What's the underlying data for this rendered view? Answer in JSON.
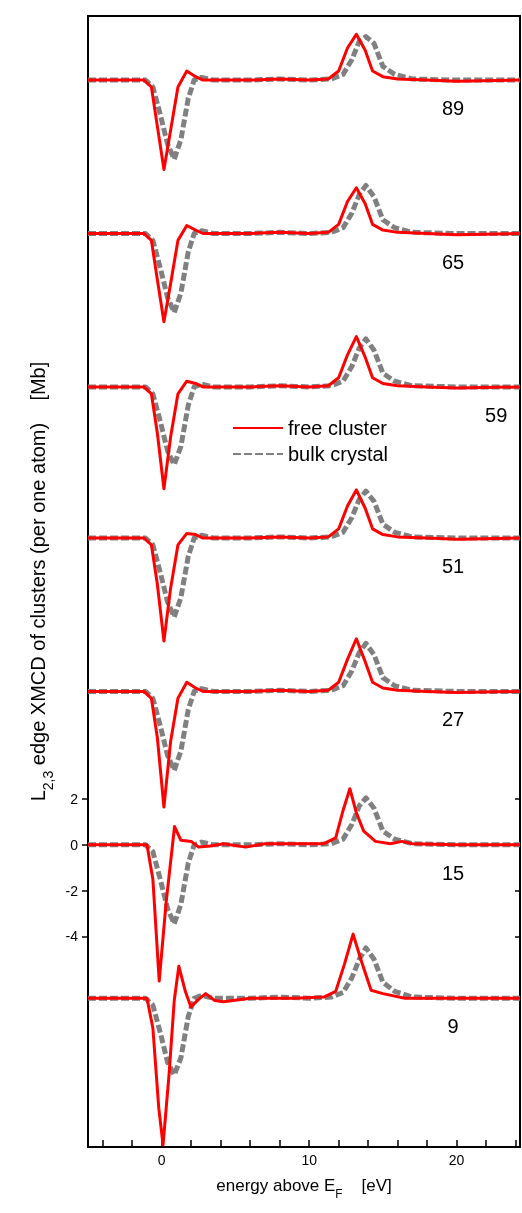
{
  "chart_data": {
    "type": "line",
    "xlabel": "energy above E$_{F}$    [eV]",
    "ylabel": "L$_{2,3}$ edge XMCD of clusters (per one atom)    [Mb]",
    "xlim": [
      -5,
      24.3
    ],
    "ylim": [
      -13.2,
      36.2
    ],
    "xticks": [
      {
        "value": -4,
        "label": null
      },
      {
        "value": -2,
        "label": null
      },
      0,
      {
        "value": 2,
        "label": null
      },
      {
        "value": 4,
        "label": null
      },
      {
        "value": 6,
        "label": null
      },
      {
        "value": 8,
        "label": null
      },
      10,
      {
        "value": 12,
        "label": null
      },
      {
        "value": 14,
        "label": null
      },
      {
        "value": 16,
        "label": null
      },
      {
        "value": 18,
        "label": null
      },
      20,
      {
        "value": 22,
        "label": null
      },
      {
        "value": 24,
        "label": null
      }
    ],
    "yticks": [
      -4,
      -2,
      0,
      2
    ],
    "grid": false,
    "legend": "center",
    "marker": "none",
    "series": [
      {
        "name": "free cluster",
        "color": "#ff0000",
        "line_style": "solid",
        "x": [
          -5,
          -1.2,
          -0.7,
          -0.3,
          0.15,
          0.6,
          1.1,
          1.7,
          2.3,
          2.8,
          4,
          6,
          8,
          10,
          11.3,
          12,
          12.6,
          13.2,
          13.8,
          14.3,
          15,
          16,
          18,
          20,
          24.3
        ],
        "values": [
          33.4,
          33.4,
          33.1,
          31.4,
          29.5,
          31.2,
          33.1,
          33.8,
          33.55,
          33.4,
          33.4,
          33.4,
          33.45,
          33.4,
          33.45,
          33.8,
          34.8,
          35.4,
          34.7,
          33.8,
          33.55,
          33.45,
          33.4,
          33.35,
          33.4
        ]
      },
      {
        "name": "bulk crystal",
        "color": "#808080",
        "line_style": "dashed",
        "x": [
          -5,
          -1.1,
          -0.6,
          -0.1,
          0.4,
          0.85,
          1.3,
          1.8,
          2.2,
          2.7,
          3.5,
          6,
          8,
          10,
          11.5,
          12.3,
          12.9,
          13.4,
          13.85,
          14.4,
          15,
          15.8,
          17,
          20,
          24.3
        ],
        "values": [
          33.4,
          33.4,
          33.1,
          31.9,
          30.6,
          29.95,
          30.8,
          32.6,
          33.4,
          33.52,
          33.4,
          33.4,
          33.45,
          33.4,
          33.45,
          33.65,
          34.3,
          35.1,
          35.3,
          35.0,
          34.0,
          33.65,
          33.45,
          33.4,
          33.4
        ]
      },
      {
        "color": "#ff0000",
        "line_style": "solid",
        "x": [
          -5,
          -1.2,
          -0.7,
          -0.3,
          0.15,
          0.6,
          1.1,
          1.7,
          2.3,
          2.8,
          4,
          6,
          8,
          10,
          11.3,
          12,
          12.6,
          13.2,
          13.8,
          14.3,
          15,
          16,
          18,
          20,
          24.3
        ],
        "values": [
          26.7,
          26.7,
          26.4,
          24.7,
          22.85,
          24.5,
          26.4,
          27.05,
          26.85,
          26.7,
          26.7,
          26.7,
          26.75,
          26.7,
          26.75,
          27.1,
          28.1,
          28.7,
          28.0,
          27.1,
          26.85,
          26.75,
          26.7,
          26.65,
          26.7
        ]
      },
      {
        "color": "#808080",
        "line_style": "dashed",
        "x": [
          -5,
          -1.1,
          -0.6,
          -0.1,
          0.4,
          0.85,
          1.3,
          1.8,
          2.2,
          2.7,
          3.5,
          6,
          8,
          10,
          11.5,
          12.3,
          12.9,
          13.4,
          13.85,
          14.4,
          15,
          15.8,
          17,
          20,
          24.3
        ],
        "values": [
          26.7,
          26.7,
          26.4,
          25.2,
          23.9,
          23.25,
          24.1,
          25.9,
          26.7,
          26.82,
          26.7,
          26.7,
          26.75,
          26.7,
          26.75,
          26.95,
          27.6,
          28.4,
          28.8,
          28.3,
          27.3,
          26.95,
          26.75,
          26.7,
          26.7
        ]
      },
      {
        "color": "#ff0000",
        "line_style": "solid",
        "x": [
          -5,
          -1.2,
          -0.7,
          -0.3,
          0.15,
          0.6,
          1.1,
          1.7,
          2.3,
          2.8,
          4,
          6,
          8,
          10,
          11.3,
          12,
          12.6,
          13.2,
          13.8,
          14.3,
          15,
          16,
          18,
          20,
          24.3
        ],
        "values": [
          20.0,
          20.0,
          19.7,
          18.0,
          15.55,
          17.8,
          19.7,
          20.25,
          20.15,
          20.0,
          20.0,
          20.0,
          20.05,
          20.0,
          20.05,
          20.4,
          21.4,
          22.2,
          21.3,
          20.4,
          20.15,
          20.05,
          20.0,
          19.95,
          20.0
        ]
      },
      {
        "color": "#808080",
        "line_style": "dashed",
        "x": [
          -5,
          -1.1,
          -0.6,
          -0.1,
          0.4,
          0.85,
          1.3,
          1.8,
          2.2,
          2.7,
          3.5,
          6,
          8,
          10,
          11.5,
          12.3,
          12.9,
          13.4,
          13.85,
          14.4,
          15,
          15.8,
          17,
          20,
          24.3
        ],
        "values": [
          20.0,
          20.0,
          19.7,
          18.5,
          17.2,
          16.6,
          17.4,
          19.2,
          20.0,
          20.12,
          20.0,
          20.0,
          20.05,
          20.0,
          20.05,
          20.25,
          20.9,
          21.7,
          22.1,
          21.6,
          20.6,
          20.25,
          20.05,
          20.0,
          20.0
        ]
      },
      {
        "color": "#ff0000",
        "line_style": "solid",
        "x": [
          -5,
          -1.2,
          -0.7,
          -0.3,
          0.15,
          0.6,
          1.1,
          1.7,
          2.3,
          2.8,
          4,
          6,
          8,
          10,
          11.3,
          12,
          12.6,
          13.2,
          13.8,
          14.3,
          15,
          16,
          18,
          20,
          24.3
        ],
        "values": [
          13.4,
          13.4,
          13.1,
          11.4,
          8.9,
          11.2,
          13.1,
          13.6,
          13.55,
          13.4,
          13.4,
          13.4,
          13.45,
          13.4,
          13.45,
          13.8,
          14.8,
          15.5,
          14.7,
          13.8,
          13.55,
          13.45,
          13.4,
          13.35,
          13.4
        ]
      },
      {
        "color": "#808080",
        "line_style": "dashed",
        "x": [
          -5,
          -1.1,
          -0.6,
          -0.1,
          0.4,
          0.85,
          1.3,
          1.8,
          2.2,
          2.7,
          3.5,
          6,
          8,
          10,
          11.5,
          12.3,
          12.9,
          13.4,
          13.85,
          14.4,
          15,
          15.8,
          17,
          20,
          24.3
        ],
        "values": [
          13.4,
          13.4,
          13.1,
          11.9,
          10.6,
          9.95,
          10.8,
          12.6,
          13.4,
          13.52,
          13.4,
          13.4,
          13.45,
          13.4,
          13.45,
          13.65,
          14.3,
          15.1,
          15.45,
          15.0,
          14.0,
          13.65,
          13.45,
          13.4,
          13.4
        ]
      },
      {
        "color": "#ff0000",
        "line_style": "solid",
        "x": [
          -5,
          -1.2,
          -0.7,
          -0.3,
          0.15,
          0.6,
          1.1,
          1.7,
          2.3,
          2.8,
          4,
          6,
          8,
          10,
          11.3,
          12,
          12.6,
          13.2,
          13.8,
          14.3,
          15,
          16,
          18,
          20,
          24.3
        ],
        "values": [
          6.7,
          6.7,
          6.4,
          4.7,
          1.65,
          4.5,
          6.4,
          7.1,
          6.85,
          6.7,
          6.7,
          6.7,
          6.75,
          6.7,
          6.75,
          7.1,
          8.1,
          9.0,
          8.0,
          7.1,
          6.85,
          6.75,
          6.7,
          6.65,
          6.7
        ]
      },
      {
        "color": "#808080",
        "line_style": "dashed",
        "x": [
          -5,
          -1.1,
          -0.6,
          -0.1,
          0.4,
          0.85,
          1.3,
          1.8,
          2.2,
          2.7,
          3.5,
          6,
          8,
          10,
          11.5,
          12.3,
          12.9,
          13.4,
          13.85,
          14.4,
          15,
          15.8,
          17,
          20,
          24.3
        ],
        "values": [
          6.7,
          6.7,
          6.4,
          5.2,
          3.9,
          3.25,
          4.1,
          5.9,
          6.7,
          6.82,
          6.7,
          6.7,
          6.75,
          6.7,
          6.75,
          6.95,
          7.6,
          8.4,
          8.8,
          8.3,
          7.3,
          6.95,
          6.75,
          6.7,
          6.7
        ]
      },
      {
        "color": "#ff0000",
        "line_style": "solid",
        "x": [
          -5,
          -1.0,
          -0.6,
          -0.17,
          0.3,
          0.87,
          1.3,
          2.0,
          2.5,
          3.3,
          4.2,
          5.7,
          7,
          9,
          11,
          11.8,
          12.3,
          12.76,
          13.2,
          13.7,
          14.5,
          15.5,
          16.3,
          17,
          20,
          24.3
        ],
        "values": [
          0,
          0,
          -1.5,
          -5.95,
          -2.5,
          0.8,
          0.2,
          0.15,
          -0.1,
          -0.05,
          0.05,
          -0.1,
          0.05,
          0.05,
          0.05,
          0.3,
          1.5,
          2.45,
          1.4,
          0.6,
          0.15,
          0.05,
          0.15,
          0.05,
          0,
          0
        ]
      },
      {
        "color": "#808080",
        "line_style": "dashed",
        "x": [
          -5,
          -1.1,
          -0.6,
          -0.1,
          0.4,
          0.85,
          1.3,
          1.8,
          2.2,
          2.7,
          3.5,
          6,
          8,
          10,
          11.5,
          12.3,
          12.9,
          13.4,
          13.85,
          14.4,
          15,
          15.8,
          17,
          20,
          24.3
        ],
        "values": [
          0,
          0,
          -0.3,
          -1.5,
          -2.8,
          -3.45,
          -2.6,
          -0.8,
          0,
          0.12,
          0,
          0,
          0.05,
          0,
          0.05,
          0.25,
          0.9,
          1.7,
          2.05,
          1.6,
          0.6,
          0.25,
          0.05,
          0,
          0
        ]
      },
      {
        "color": "#ff0000",
        "line_style": "solid",
        "x": [
          -5,
          -1.0,
          -0.6,
          -0.2,
          0.09,
          0.5,
          0.85,
          1.16,
          1.6,
          1.98,
          2.5,
          2.98,
          3.6,
          4.2,
          6,
          9,
          11,
          11.8,
          12.4,
          12.98,
          13.5,
          14.2,
          15,
          16.5,
          20,
          24.3
        ],
        "values": [
          -6.7,
          -6.7,
          -8.0,
          -11.5,
          -13.1,
          -10.0,
          -6.8,
          -5.3,
          -6.4,
          -7.08,
          -6.75,
          -6.5,
          -6.8,
          -6.85,
          -6.7,
          -6.7,
          -6.65,
          -6.4,
          -5.2,
          -3.9,
          -5.0,
          -6.35,
          -6.5,
          -6.7,
          -6.7,
          -6.7
        ]
      },
      {
        "color": "#808080",
        "line_style": "dashed",
        "x": [
          -5,
          -1.1,
          -0.6,
          -0.1,
          0.4,
          0.85,
          1.3,
          1.8,
          2.2,
          2.7,
          3.5,
          6,
          8,
          10,
          11.5,
          12.3,
          12.9,
          13.4,
          13.85,
          14.4,
          15,
          15.8,
          17,
          20,
          24.3
        ],
        "values": [
          -6.7,
          -6.7,
          -7.0,
          -8.2,
          -9.5,
          -10.05,
          -9.3,
          -7.5,
          -6.7,
          -6.58,
          -6.7,
          -6.7,
          -6.65,
          -6.7,
          -6.65,
          -6.45,
          -5.8,
          -5.0,
          -4.5,
          -5.0,
          -6.0,
          -6.4,
          -6.65,
          -6.7,
          -6.7
        ]
      }
    ],
    "annotations": [
      "89",
      "65",
      "59",
      "51",
      "27",
      "15",
      "9"
    ]
  }
}
